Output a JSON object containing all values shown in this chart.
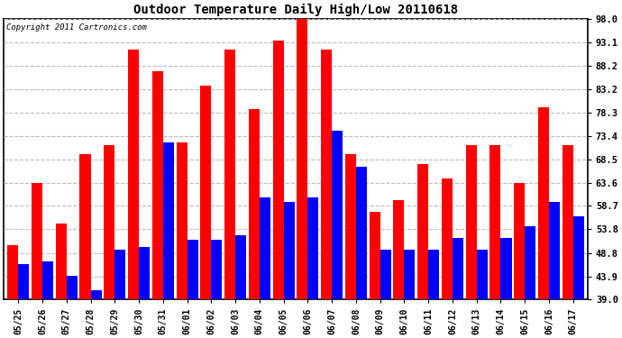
{
  "title": "Outdoor Temperature Daily High/Low 20110618",
  "copyright": "Copyright 2011 Cartronics.com",
  "dates": [
    "05/25",
    "05/26",
    "05/27",
    "05/28",
    "05/29",
    "05/30",
    "05/31",
    "06/01",
    "06/02",
    "06/03",
    "06/04",
    "06/05",
    "06/06",
    "06/07",
    "06/08",
    "06/09",
    "06/10",
    "06/11",
    "06/12",
    "06/13",
    "06/14",
    "06/15",
    "06/16",
    "06/17"
  ],
  "highs": [
    50.5,
    63.5,
    55.0,
    69.5,
    71.5,
    91.5,
    87.0,
    72.0,
    84.0,
    91.5,
    79.0,
    93.5,
    98.8,
    91.5,
    69.5,
    57.5,
    60.0,
    67.5,
    64.5,
    71.5,
    71.5,
    63.5,
    79.5,
    71.5
  ],
  "lows": [
    46.5,
    47.0,
    44.0,
    41.0,
    49.5,
    50.0,
    72.0,
    51.5,
    51.5,
    52.5,
    60.5,
    59.5,
    60.5,
    74.5,
    67.0,
    49.5,
    49.5,
    49.5,
    52.0,
    49.5,
    52.0,
    54.5,
    59.5,
    56.5
  ],
  "high_color": "#ff0000",
  "low_color": "#0000ff",
  "bg_color": "#ffffff",
  "grid_color": "#bbbbbb",
  "yticks": [
    39.0,
    43.9,
    48.8,
    53.8,
    58.7,
    63.6,
    68.5,
    73.4,
    78.3,
    83.2,
    88.2,
    93.1,
    98.0
  ],
  "ymin": 39.0,
  "ymax": 98.0,
  "bar_width": 0.45,
  "figwidth": 6.9,
  "figheight": 3.75,
  "dpi": 100
}
